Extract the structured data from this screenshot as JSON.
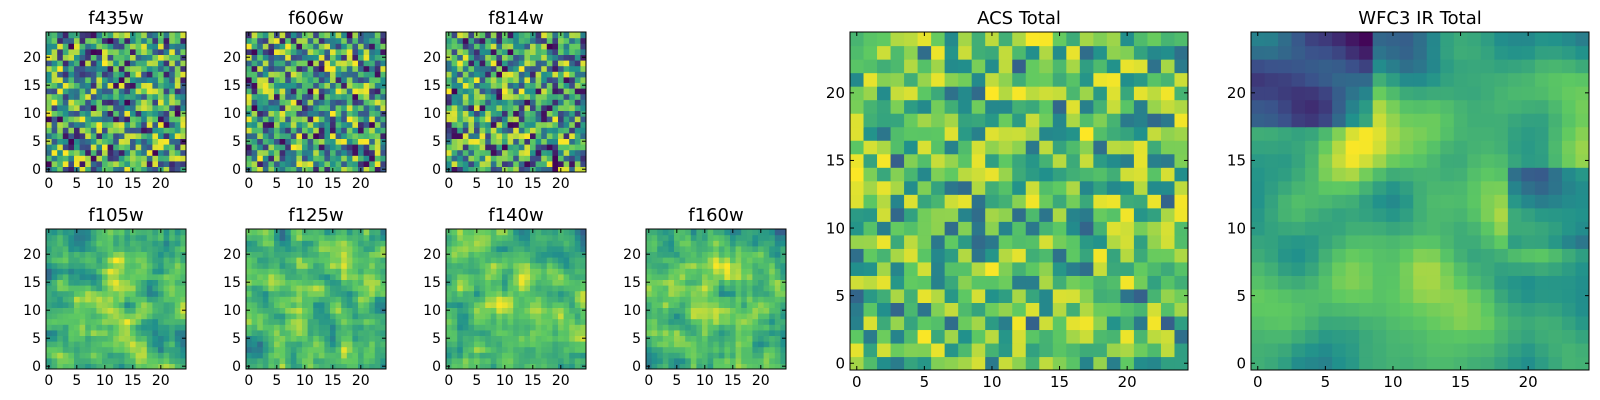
{
  "colormap": {
    "name": "viridis",
    "stops": [
      "#440154",
      "#3b528b",
      "#21918c",
      "#5ec962",
      "#fde725"
    ]
  },
  "chart_data": [
    {
      "type": "heatmap",
      "title": "f435w",
      "grid_size": 25,
      "x_ticks": [
        0,
        5,
        10,
        15,
        20
      ],
      "y_ticks": [
        0,
        5,
        10,
        15,
        20
      ],
      "xlim": [
        0,
        25
      ],
      "ylim": [
        0,
        25
      ],
      "texture": "uncorrelated noise"
    },
    {
      "type": "heatmap",
      "title": "f606w",
      "grid_size": 25,
      "x_ticks": [
        0,
        5,
        10,
        15,
        20
      ],
      "y_ticks": [
        0,
        5,
        10,
        15,
        20
      ],
      "xlim": [
        0,
        25
      ],
      "ylim": [
        0,
        25
      ],
      "texture": "uncorrelated noise"
    },
    {
      "type": "heatmap",
      "title": "f814w",
      "grid_size": 25,
      "x_ticks": [
        0,
        5,
        10,
        15,
        20
      ],
      "y_ticks": [
        0,
        5,
        10,
        15,
        20
      ],
      "xlim": [
        0,
        25
      ],
      "ylim": [
        0,
        25
      ],
      "texture": "uncorrelated noise"
    },
    {
      "type": "heatmap",
      "title": "f105w",
      "grid_size": 25,
      "x_ticks": [
        0,
        5,
        10,
        15,
        20
      ],
      "y_ticks": [
        0,
        5,
        10,
        15,
        20
      ],
      "xlim": [
        0,
        25
      ],
      "ylim": [
        0,
        25
      ],
      "texture": "correlated noise, bright center"
    },
    {
      "type": "heatmap",
      "title": "f125w",
      "grid_size": 25,
      "x_ticks": [
        0,
        5,
        10,
        15,
        20
      ],
      "y_ticks": [
        0,
        5,
        10,
        15,
        20
      ],
      "xlim": [
        0,
        25
      ],
      "ylim": [
        0,
        25
      ],
      "texture": "correlated noise, bright center"
    },
    {
      "type": "heatmap",
      "title": "f140w",
      "grid_size": 25,
      "x_ticks": [
        0,
        5,
        10,
        15,
        20
      ],
      "y_ticks": [
        0,
        5,
        10,
        15,
        20
      ],
      "xlim": [
        0,
        25
      ],
      "ylim": [
        0,
        25
      ],
      "texture": "correlated noise, bright center"
    },
    {
      "type": "heatmap",
      "title": "f160w",
      "grid_size": 25,
      "x_ticks": [
        0,
        5,
        10,
        15,
        20
      ],
      "y_ticks": [
        0,
        5,
        10,
        15,
        20
      ],
      "xlim": [
        0,
        25
      ],
      "ylim": [
        0,
        25
      ],
      "texture": "correlated noise, bright center"
    },
    {
      "type": "heatmap",
      "title": "ACS Total",
      "grid_size": 25,
      "x_ticks": [
        0,
        5,
        10,
        15,
        20
      ],
      "y_ticks": [
        0,
        5,
        10,
        15,
        20
      ],
      "xlim": [
        0,
        25
      ],
      "ylim": [
        0,
        25
      ],
      "texture": "noise, mostly green-yellow"
    },
    {
      "type": "heatmap",
      "title": "WFC3 IR Total",
      "grid_size": 25,
      "x_ticks": [
        0,
        5,
        10,
        15,
        20
      ],
      "y_ticks": [
        0,
        5,
        10,
        15,
        20
      ],
      "xlim": [
        0,
        25
      ],
      "ylim": [
        0,
        25
      ],
      "texture": "smooth, bright center, dark upper-left and right"
    }
  ]
}
